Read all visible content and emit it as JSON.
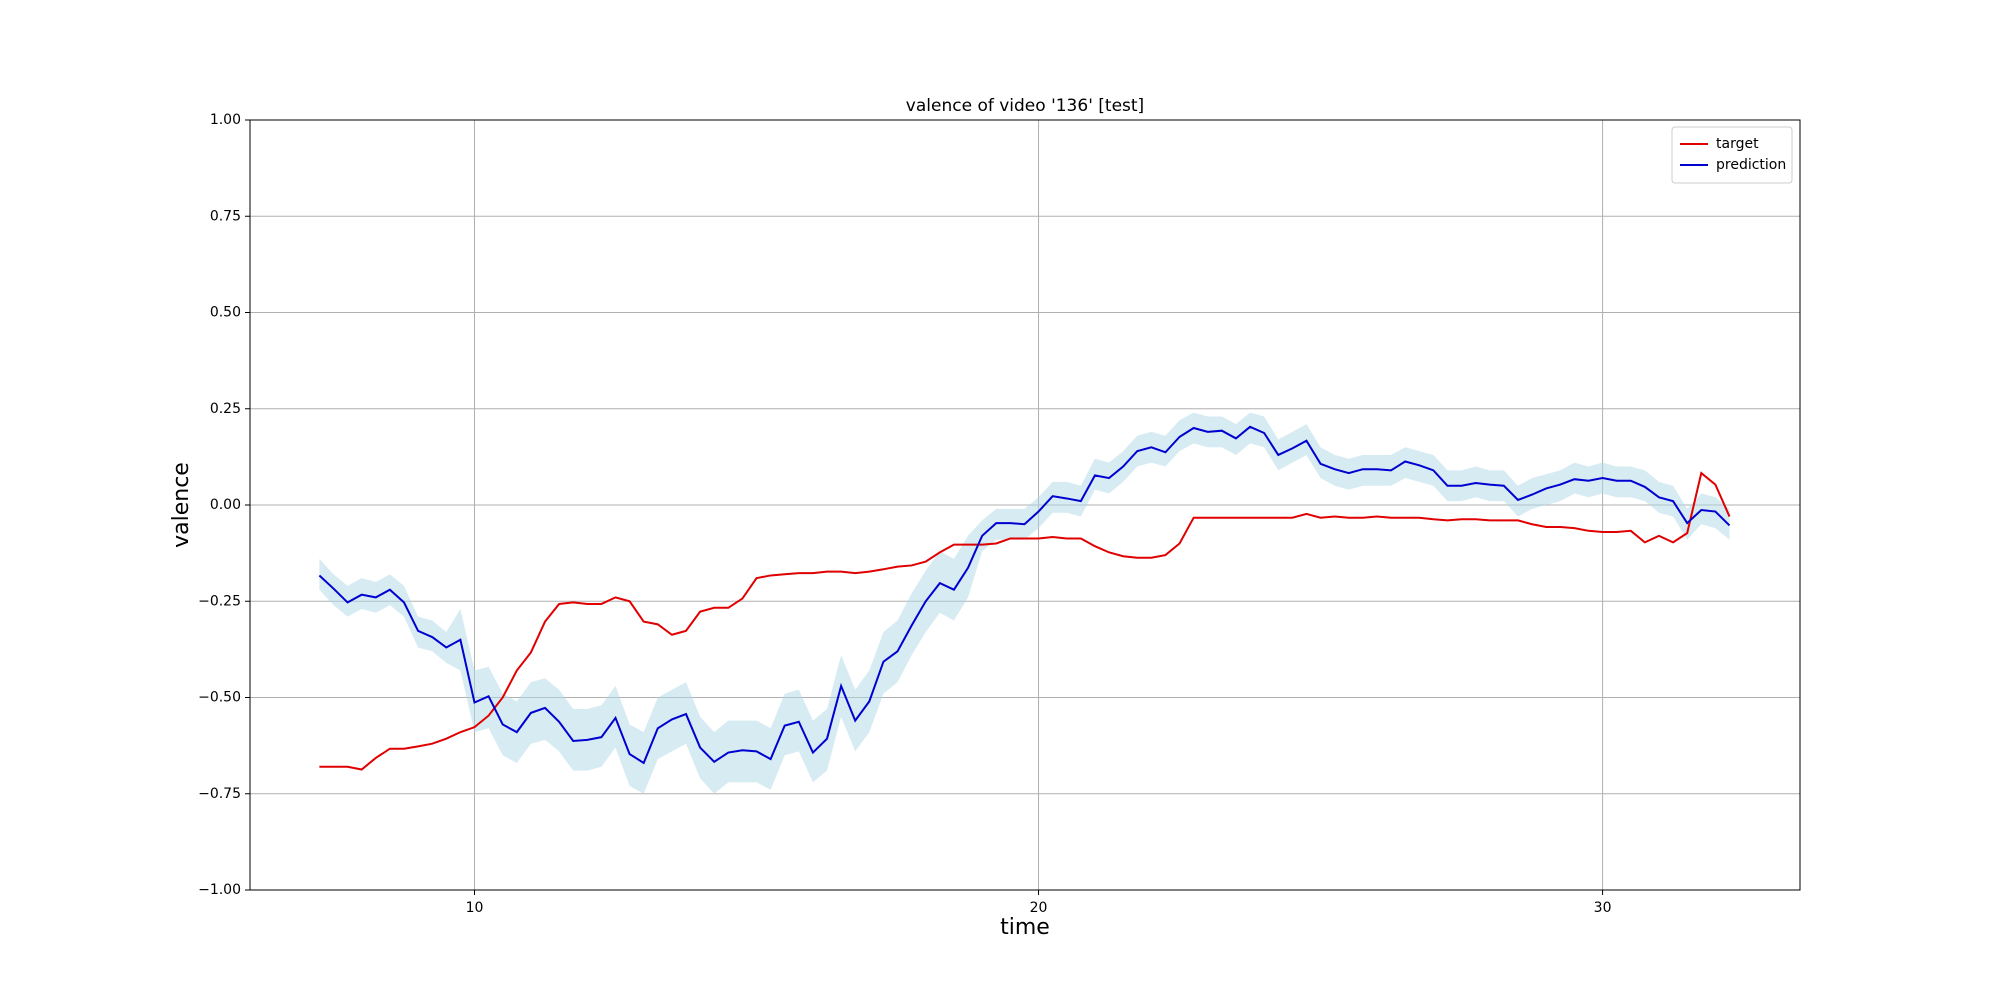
{
  "chart_data": {
    "type": "line",
    "title": "valence of video '136' [test]",
    "x_label": "time",
    "y_label": "valence",
    "x": [
      7.25,
      7.5,
      7.75,
      8,
      8.25,
      8.5,
      8.75,
      9,
      9.25,
      9.5,
      9.75,
      10,
      10.25,
      10.5,
      10.75,
      11,
      11.25,
      11.5,
      11.75,
      12,
      12.25,
      12.5,
      12.75,
      13,
      13.25,
      13.5,
      13.75,
      14,
      14.25,
      14.5,
      14.75,
      15,
      15.25,
      15.5,
      15.75,
      16,
      16.25,
      16.5,
      16.75,
      17,
      17.25,
      17.5,
      17.75,
      18,
      18.25,
      18.5,
      18.75,
      19,
      19.25,
      19.5,
      19.75,
      20,
      20.25,
      20.5,
      20.75,
      21,
      21.25,
      21.5,
      21.75,
      22,
      22.25,
      22.5,
      22.75,
      23,
      23.25,
      23.5,
      23.75,
      24,
      24.25,
      24.5,
      24.75,
      25,
      25.25,
      25.5,
      25.75,
      26,
      26.25,
      26.5,
      26.75,
      27,
      27.25,
      27.5,
      27.75,
      28,
      28.25,
      28.5,
      28.75,
      29,
      29.25,
      29.5,
      29.75,
      30,
      30.25,
      30.5,
      30.75,
      31,
      31.25,
      31.5,
      31.75,
      32,
      32.25
    ],
    "series": [
      {
        "name": "target",
        "color": "#e00000",
        "values": [
          -0.68,
          -0.68,
          -0.68,
          -0.687,
          -0.657,
          -0.633,
          -0.633,
          -0.627,
          -0.62,
          -0.607,
          -0.59,
          -0.577,
          -0.547,
          -0.5,
          -0.43,
          -0.383,
          -0.303,
          -0.257,
          -0.253,
          -0.257,
          -0.257,
          -0.24,
          -0.25,
          -0.303,
          -0.31,
          -0.337,
          -0.327,
          -0.277,
          -0.267,
          -0.267,
          -0.243,
          -0.19,
          -0.183,
          -0.18,
          -0.177,
          -0.177,
          -0.173,
          -0.173,
          -0.177,
          -0.173,
          -0.167,
          -0.16,
          -0.157,
          -0.147,
          -0.123,
          -0.103,
          -0.103,
          -0.103,
          -0.1,
          -0.087,
          -0.087,
          -0.087,
          -0.083,
          -0.087,
          -0.087,
          -0.107,
          -0.123,
          -0.133,
          -0.137,
          -0.137,
          -0.13,
          -0.1,
          -0.033,
          -0.033,
          -0.033,
          -0.033,
          -0.033,
          -0.033,
          -0.033,
          -0.033,
          -0.023,
          -0.033,
          -0.03,
          -0.033,
          -0.033,
          -0.03,
          -0.033,
          -0.033,
          -0.033,
          -0.037,
          -0.04,
          -0.037,
          -0.037,
          -0.04,
          -0.04,
          -0.04,
          -0.05,
          -0.057,
          -0.057,
          -0.06,
          -0.067,
          -0.07,
          -0.07,
          -0.067,
          -0.097,
          -0.08,
          -0.097,
          -0.073,
          0.083,
          0.053,
          -0.03
        ]
      },
      {
        "name": "prediction",
        "color": "#0000d0",
        "band_color": "#add8e6",
        "values": [
          -0.183,
          -0.217,
          -0.253,
          -0.233,
          -0.24,
          -0.22,
          -0.253,
          -0.327,
          -0.343,
          -0.37,
          -0.35,
          -0.513,
          -0.497,
          -0.57,
          -0.59,
          -0.54,
          -0.527,
          -0.563,
          -0.613,
          -0.61,
          -0.603,
          -0.553,
          -0.647,
          -0.67,
          -0.58,
          -0.557,
          -0.543,
          -0.63,
          -0.667,
          -0.643,
          -0.637,
          -0.64,
          -0.66,
          -0.573,
          -0.563,
          -0.643,
          -0.607,
          -0.47,
          -0.56,
          -0.51,
          -0.407,
          -0.38,
          -0.313,
          -0.25,
          -0.203,
          -0.22,
          -0.163,
          -0.08,
          -0.047,
          -0.047,
          -0.05,
          -0.017,
          0.023,
          0.017,
          0.01,
          0.077,
          0.07,
          0.1,
          0.14,
          0.15,
          0.137,
          0.177,
          0.2,
          0.19,
          0.193,
          0.173,
          0.203,
          0.187,
          0.13,
          0.147,
          0.167,
          0.107,
          0.093,
          0.083,
          0.093,
          0.093,
          0.09,
          0.113,
          0.103,
          0.09,
          0.05,
          0.05,
          0.057,
          0.053,
          0.05,
          0.013,
          0.027,
          0.043,
          0.053,
          0.067,
          0.063,
          0.07,
          0.063,
          0.063,
          0.047,
          0.02,
          0.01,
          -0.047,
          -0.013,
          -0.017,
          -0.053
        ],
        "upper": [
          -0.14,
          -0.18,
          -0.21,
          -0.19,
          -0.2,
          -0.18,
          -0.21,
          -0.29,
          -0.3,
          -0.33,
          -0.27,
          -0.43,
          -0.42,
          -0.49,
          -0.51,
          -0.46,
          -0.45,
          -0.48,
          -0.53,
          -0.53,
          -0.52,
          -0.47,
          -0.57,
          -0.59,
          -0.5,
          -0.48,
          -0.46,
          -0.55,
          -0.59,
          -0.56,
          -0.56,
          -0.56,
          -0.58,
          -0.49,
          -0.48,
          -0.56,
          -0.53,
          -0.39,
          -0.48,
          -0.43,
          -0.33,
          -0.3,
          -0.23,
          -0.17,
          -0.12,
          -0.14,
          -0.08,
          -0.04,
          -0.01,
          -0.01,
          -0.01,
          0.02,
          0.06,
          0.06,
          0.05,
          0.12,
          0.11,
          0.14,
          0.18,
          0.19,
          0.18,
          0.22,
          0.24,
          0.23,
          0.23,
          0.21,
          0.24,
          0.23,
          0.17,
          0.19,
          0.21,
          0.15,
          0.13,
          0.12,
          0.13,
          0.13,
          0.13,
          0.15,
          0.14,
          0.13,
          0.09,
          0.09,
          0.1,
          0.09,
          0.09,
          0.05,
          0.07,
          0.08,
          0.09,
          0.11,
          0.1,
          0.11,
          0.1,
          0.1,
          0.09,
          0.06,
          0.05,
          -0.01,
          0.03,
          0.02,
          -0.01
        ],
        "lower": [
          -0.22,
          -0.26,
          -0.29,
          -0.27,
          -0.28,
          -0.26,
          -0.29,
          -0.37,
          -0.38,
          -0.41,
          -0.43,
          -0.59,
          -0.58,
          -0.65,
          -0.67,
          -0.62,
          -0.61,
          -0.64,
          -0.69,
          -0.69,
          -0.68,
          -0.63,
          -0.73,
          -0.75,
          -0.66,
          -0.64,
          -0.62,
          -0.71,
          -0.75,
          -0.72,
          -0.72,
          -0.72,
          -0.74,
          -0.65,
          -0.64,
          -0.72,
          -0.69,
          -0.55,
          -0.64,
          -0.59,
          -0.49,
          -0.46,
          -0.39,
          -0.33,
          -0.28,
          -0.3,
          -0.24,
          -0.12,
          -0.09,
          -0.09,
          -0.09,
          -0.06,
          -0.02,
          -0.02,
          -0.03,
          0.04,
          0.03,
          0.06,
          0.1,
          0.11,
          0.1,
          0.14,
          0.16,
          0.15,
          0.15,
          0.13,
          0.16,
          0.15,
          0.09,
          0.11,
          0.13,
          0.07,
          0.05,
          0.04,
          0.05,
          0.05,
          0.05,
          0.07,
          0.06,
          0.05,
          0.01,
          0.01,
          0.02,
          0.01,
          0.01,
          -0.03,
          -0.01,
          0,
          0.01,
          0.03,
          0.02,
          0.03,
          0.02,
          0.02,
          0.01,
          -0.02,
          -0.03,
          -0.09,
          -0.05,
          -0.06,
          -0.09
        ]
      }
    ],
    "xlim": [
      6.02,
      33.5
    ],
    "xticks": [
      10,
      20,
      30
    ],
    "ylim": [
      -1,
      1
    ],
    "yticks": [
      {
        "value": -1,
        "label": "−1.00"
      },
      {
        "value": -0.75,
        "label": "−0.75"
      },
      {
        "value": -0.5,
        "label": "−0.50"
      },
      {
        "value": -0.25,
        "label": "−0.25"
      },
      {
        "value": 0,
        "label": "0.00"
      },
      {
        "value": 0.25,
        "label": "0.25"
      },
      {
        "value": 0.5,
        "label": "0.50"
      },
      {
        "value": 0.75,
        "label": "0.75"
      },
      {
        "value": 1,
        "label": "1.00"
      }
    ],
    "grid": true,
    "legend": "upper right"
  }
}
